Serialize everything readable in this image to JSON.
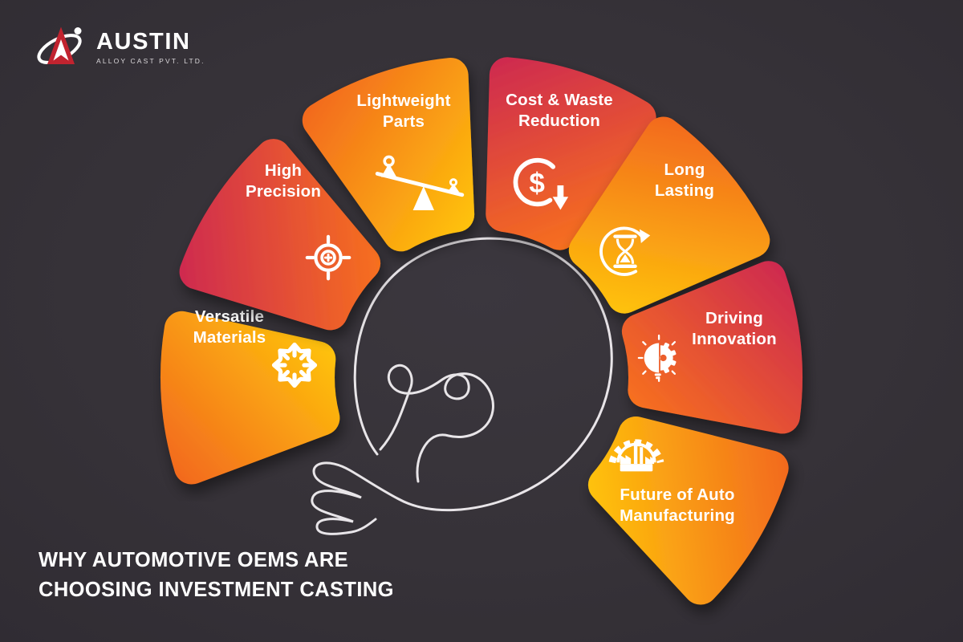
{
  "brand": {
    "name": "AUSTIN",
    "tagline": "ALLOY CAST PVT. LTD."
  },
  "title": {
    "line1": "WHY AUTOMOTIVE OEMS ARE",
    "line2": "CHOOSING INVESTMENT CASTING"
  },
  "center_graphic": {
    "name": "lightbulb-line-art"
  },
  "icons": {
    "dollar_symbol": "$"
  },
  "colors": {
    "background": "#37333a",
    "text": "#ffffff",
    "petal_red_outer": "#cd2851",
    "petal_red_inner": "#f8721d",
    "petal_orange_outer": "#f2671f",
    "petal_orange_inner": "#ffc50b",
    "logo_red": "#c1232f"
  },
  "petals": [
    {
      "label_lines": [
        "Versatile",
        "Materials"
      ],
      "icon": "expand-arrows-icon",
      "palette": "orange"
    },
    {
      "label_lines": [
        "High",
        "Precision"
      ],
      "icon": "target-icon",
      "palette": "red"
    },
    {
      "label_lines": [
        "Lightweight",
        "Parts"
      ],
      "icon": "balance-scale-icon",
      "palette": "orange"
    },
    {
      "label_lines": [
        "Cost & Waste",
        "Reduction"
      ],
      "icon": "cost-reduction-icon",
      "palette": "red"
    },
    {
      "label_lines": [
        "Long",
        "Lasting"
      ],
      "icon": "hourglass-cycle-icon",
      "palette": "orange"
    },
    {
      "label_lines": [
        "Driving",
        "Innovation"
      ],
      "icon": "bulb-gear-icon",
      "palette": "red"
    },
    {
      "label_lines": [
        "Future of Auto",
        "Manufacturing"
      ],
      "icon": "smart-factory-icon",
      "palette": "orange"
    }
  ]
}
